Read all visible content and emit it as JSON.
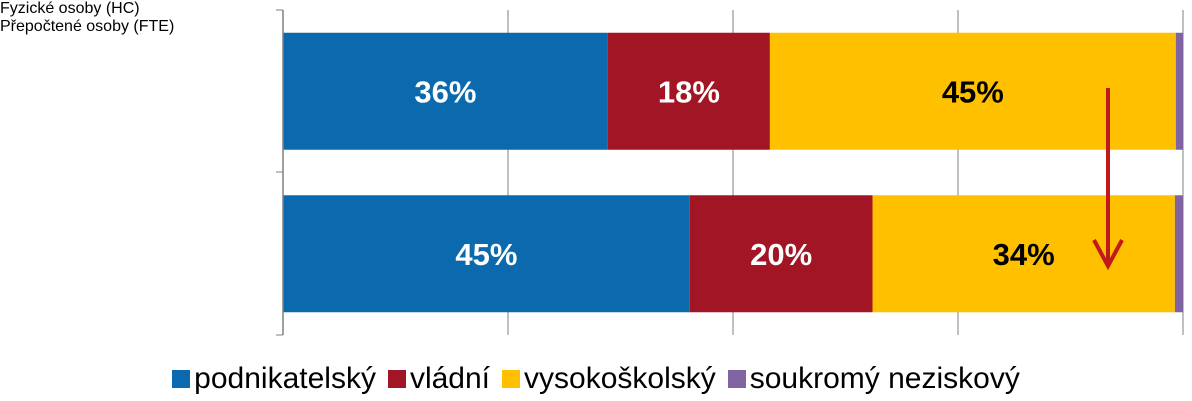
{
  "chart_data": {
    "type": "stacked_hbar",
    "categories": [
      "Fyzické osoby (HC)",
      "Přepočtené osoby (FTE)"
    ],
    "series": [
      {
        "name": "podnikatelský",
        "color": "#0b6aad",
        "label_color": "#ffffff",
        "values": [
          36.1,
          45.2
        ],
        "value_labels": [
          "36%",
          "45%"
        ]
      },
      {
        "name": "vládní",
        "color": "#a21525",
        "label_color": "#ffffff",
        "values": [
          18,
          20.3
        ],
        "value_labels": [
          "18%",
          "20%"
        ]
      },
      {
        "name": "vysokoškolský",
        "color": "#ffc000",
        "label_color": "#000000",
        "values": [
          45.1,
          33.6
        ],
        "value_labels": [
          "45%",
          "34%"
        ]
      },
      {
        "name": "soukromý neziskový",
        "color": "#8064a2",
        "values": [
          0.8,
          0.9
        ]
      }
    ],
    "xlim": [
      0,
      100
    ],
    "xticks": [
      0,
      25,
      50,
      75,
      100
    ],
    "grid": true,
    "legend": "bottom"
  }
}
